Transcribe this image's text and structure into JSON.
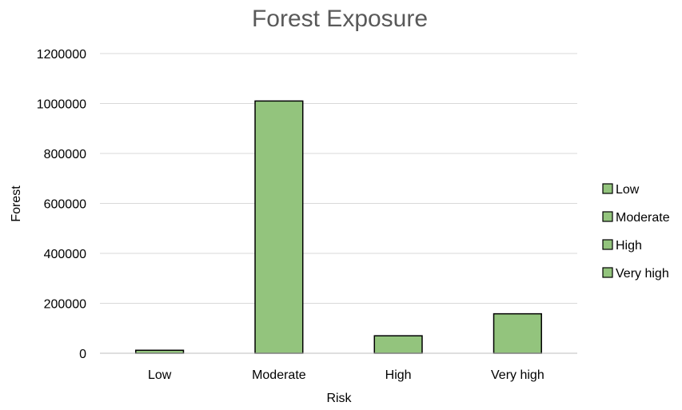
{
  "chart_data": {
    "type": "bar",
    "title": "Forest Exposure",
    "xlabel": "Risk",
    "ylabel": "Forest",
    "categories": [
      "Low",
      "Moderate",
      "High",
      "Very high"
    ],
    "values": [
      12000,
      1010000,
      70000,
      158000
    ],
    "ylim": [
      0,
      1200000
    ],
    "yticks": [
      "0",
      "200000",
      "400000",
      "600000",
      "800000",
      "1000000",
      "1200000"
    ],
    "grid": true,
    "legend_position": "right",
    "legend": [
      "Low",
      "Moderate",
      "High",
      "Very high"
    ],
    "colors": {
      "bar_fill": "#93c47d",
      "bar_stroke": "#000000",
      "grid": "#d9d9d9",
      "axis": "#bfbfbf",
      "title": "#595959"
    }
  }
}
